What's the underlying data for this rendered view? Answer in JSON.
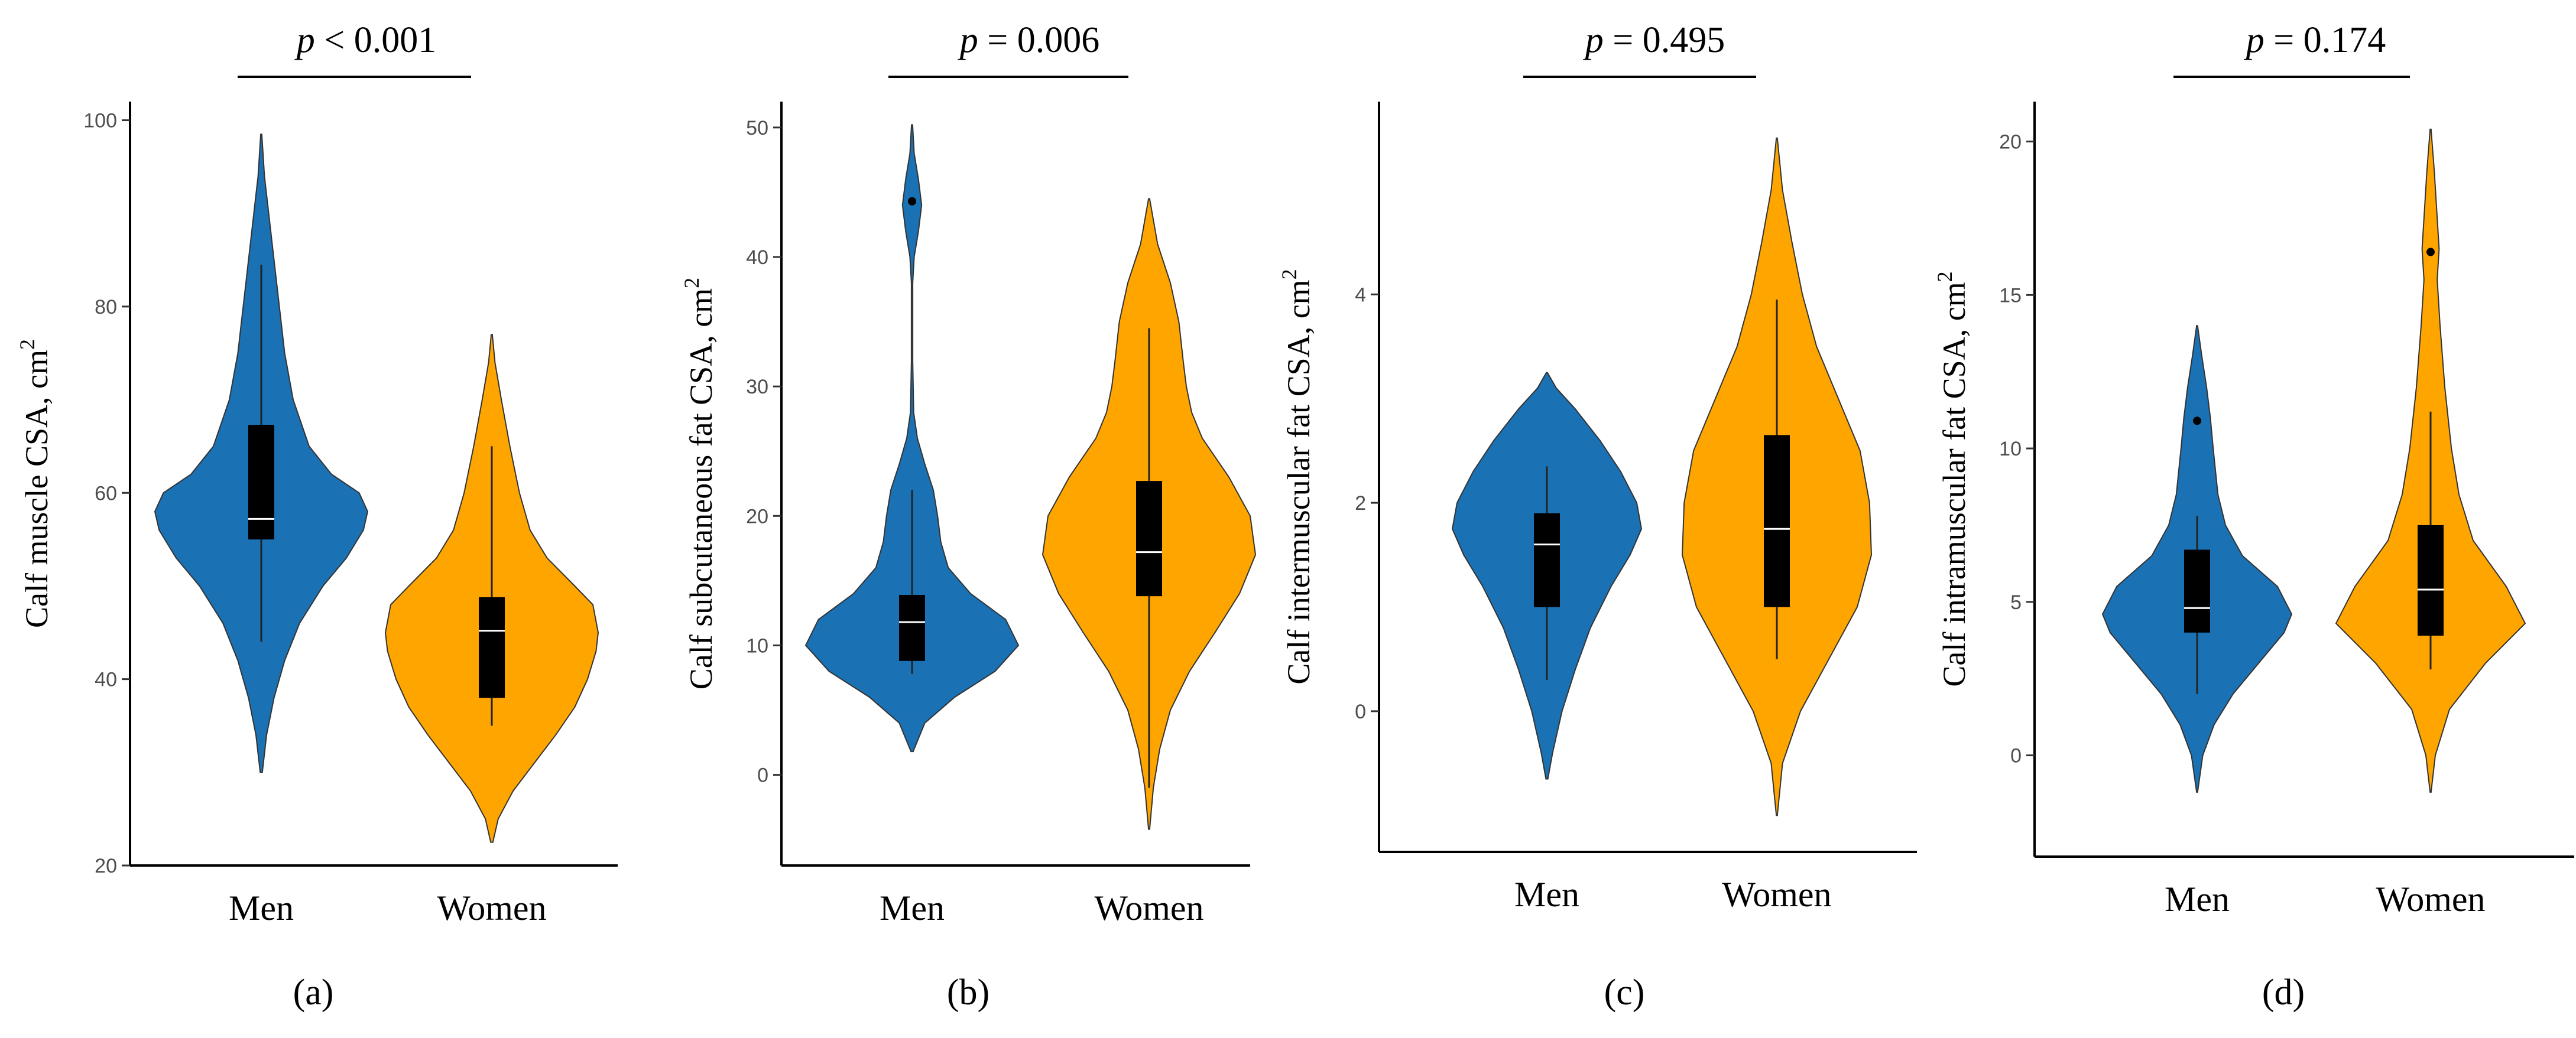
{
  "chart_data": [
    {
      "type": "violin",
      "panel_label": "(a)",
      "p_label": "p",
      "p_text": " < 0.001",
      "ylabel": "Calf muscle CSA, cm",
      "ylabel_sup": "2",
      "categories": [
        "Men",
        "Women"
      ],
      "colors": [
        "#1a71b4",
        "#ffa500"
      ],
      "ylim": [
        20,
        102
      ],
      "yticks": [
        20,
        40,
        60,
        80,
        100
      ],
      "tick_labels": [
        "20",
        "40",
        "60",
        "80",
        "100"
      ],
      "series": [
        {
          "name": "Men",
          "violin_min": 30,
          "violin_max": 98.5,
          "density": [
            [
              30,
              0.01
            ],
            [
              34,
              0.05
            ],
            [
              38,
              0.12
            ],
            [
              42,
              0.22
            ],
            [
              46,
              0.36
            ],
            [
              50,
              0.58
            ],
            [
              53,
              0.8
            ],
            [
              56,
              0.96
            ],
            [
              58,
              1
            ],
            [
              60,
              0.92
            ],
            [
              62,
              0.66
            ],
            [
              65,
              0.45
            ],
            [
              70,
              0.3
            ],
            [
              75,
              0.22
            ],
            [
              80,
              0.17
            ],
            [
              85,
              0.12
            ],
            [
              90,
              0.07
            ],
            [
              94,
              0.03
            ],
            [
              98.5,
              0.005
            ]
          ],
          "box": {
            "q1": 55,
            "median": 57.2,
            "q3": 67.3,
            "whisker_low": 44,
            "whisker_high": 84.5
          },
          "outliers": []
        },
        {
          "name": "Women",
          "violin_min": 22.5,
          "violin_max": 77,
          "density": [
            [
              22.5,
              0.01
            ],
            [
              25,
              0.06
            ],
            [
              28,
              0.2
            ],
            [
              31,
              0.4
            ],
            [
              34,
              0.6
            ],
            [
              37,
              0.78
            ],
            [
              40,
              0.9
            ],
            [
              43,
              0.98
            ],
            [
              45,
              1
            ],
            [
              48,
              0.95
            ],
            [
              50,
              0.78
            ],
            [
              53,
              0.52
            ],
            [
              56,
              0.36
            ],
            [
              60,
              0.26
            ],
            [
              65,
              0.17
            ],
            [
              70,
              0.09
            ],
            [
              74,
              0.03
            ],
            [
              77,
              0.005
            ]
          ],
          "box": {
            "q1": 38,
            "median": 45.2,
            "q3": 48.8,
            "whisker_low": 35,
            "whisker_high": 65
          },
          "outliers": []
        }
      ]
    },
    {
      "type": "violin",
      "panel_label": "(b)",
      "p_label": "p",
      "p_text": " = 0.006",
      "ylabel": "Calf subcutaneous fat  CSA, cm",
      "ylabel_sup": "2",
      "categories": [
        "Men",
        "Women"
      ],
      "colors": [
        "#1a71b4",
        "#ffa500"
      ],
      "ylim": [
        -7,
        52
      ],
      "yticks": [
        0,
        10,
        20,
        30,
        40,
        50
      ],
      "tick_labels": [
        "0",
        "10",
        "20",
        "30",
        "40",
        "50"
      ],
      "series": [
        {
          "name": "Men",
          "violin_min": 1.8,
          "violin_max": 50.2,
          "density": [
            [
              1.8,
              0.01
            ],
            [
              4,
              0.12
            ],
            [
              6,
              0.4
            ],
            [
              8,
              0.78
            ],
            [
              10,
              1
            ],
            [
              12,
              0.88
            ],
            [
              14,
              0.55
            ],
            [
              16,
              0.34
            ],
            [
              18,
              0.27
            ],
            [
              20,
              0.24
            ],
            [
              22,
              0.2
            ],
            [
              24,
              0.12
            ],
            [
              26,
              0.05
            ],
            [
              28,
              0.015
            ],
            [
              32,
              0.006
            ],
            [
              38,
              0.006
            ],
            [
              40,
              0.02
            ],
            [
              42,
              0.06
            ],
            [
              44,
              0.09
            ],
            [
              46,
              0.06
            ],
            [
              48,
              0.02
            ],
            [
              50.2,
              0.005
            ]
          ],
          "box": {
            "q1": 8.8,
            "median": 11.8,
            "q3": 13.9,
            "whisker_low": 7.8,
            "whisker_high": 22
          },
          "outliers": [
            44.3
          ]
        },
        {
          "name": "Women",
          "violin_min": -4.2,
          "violin_max": 44.5,
          "density": [
            [
              -4.2,
              0.005
            ],
            [
              -1,
              0.04
            ],
            [
              2,
              0.1
            ],
            [
              5,
              0.2
            ],
            [
              8,
              0.38
            ],
            [
              11,
              0.62
            ],
            [
              14,
              0.85
            ],
            [
              17,
              1
            ],
            [
              20,
              0.95
            ],
            [
              23,
              0.75
            ],
            [
              26,
              0.5
            ],
            [
              28,
              0.4
            ],
            [
              30,
              0.35
            ],
            [
              32,
              0.32
            ],
            [
              35,
              0.28
            ],
            [
              38,
              0.2
            ],
            [
              41,
              0.08
            ],
            [
              44.5,
              0.005
            ]
          ],
          "box": {
            "q1": 13.8,
            "median": 17.2,
            "q3": 22.7,
            "whisker_low": -1,
            "whisker_high": 34.5
          },
          "outliers": []
        }
      ]
    },
    {
      "type": "violin",
      "panel_label": "(c)",
      "p_label": "p",
      "p_text": " = 0.495",
      "ylabel": "Calf intermuscular  fat  CSA, cm",
      "ylabel_sup": "2",
      "categories": [
        "Men",
        "Women"
      ],
      "colors": [
        "#1a71b4",
        "#ffa500"
      ],
      "ylim": [
        -1.35,
        5.85
      ],
      "yticks": [
        0,
        2,
        4
      ],
      "tick_labels": [
        "0",
        "2",
        "4"
      ],
      "series": [
        {
          "name": "Men",
          "violin_min": -0.65,
          "violin_max": 3.25,
          "density": [
            [
              -0.65,
              0.01
            ],
            [
              -0.4,
              0.06
            ],
            [
              0,
              0.16
            ],
            [
              0.4,
              0.3
            ],
            [
              0.8,
              0.46
            ],
            [
              1.2,
              0.68
            ],
            [
              1.5,
              0.88
            ],
            [
              1.75,
              1
            ],
            [
              2,
              0.95
            ],
            [
              2.3,
              0.78
            ],
            [
              2.6,
              0.56
            ],
            [
              2.9,
              0.3
            ],
            [
              3.1,
              0.1
            ],
            [
              3.25,
              0.005
            ]
          ],
          "box": {
            "q1": 1,
            "median": 1.6,
            "q3": 1.9,
            "whisker_low": 0.3,
            "whisker_high": 2.35
          },
          "outliers": []
        },
        {
          "name": "Women",
          "violin_min": -1.0,
          "violin_max": 5.5,
          "density": [
            [
              -1,
              0.005
            ],
            [
              -0.5,
              0.06
            ],
            [
              0,
              0.25
            ],
            [
              0.5,
              0.55
            ],
            [
              1,
              0.85
            ],
            [
              1.5,
              1
            ],
            [
              2,
              0.98
            ],
            [
              2.5,
              0.88
            ],
            [
              3,
              0.65
            ],
            [
              3.5,
              0.42
            ],
            [
              4,
              0.27
            ],
            [
              4.5,
              0.16
            ],
            [
              5,
              0.06
            ],
            [
              5.5,
              0.005
            ]
          ],
          "box": {
            "q1": 1,
            "median": 1.75,
            "q3": 2.65,
            "whisker_low": 0.5,
            "whisker_high": 3.95
          },
          "outliers": []
        }
      ]
    },
    {
      "type": "violin",
      "panel_label": "(d)",
      "p_label": "p",
      "p_text": " = 0.174",
      "ylabel": "Calf intramuscular  fat  CSA, cm",
      "ylabel_sup": "2",
      "categories": [
        "Men",
        "Women"
      ],
      "colors": [
        "#1a71b4",
        "#ffa500"
      ],
      "ylim": [
        -3.3,
        21.3
      ],
      "yticks": [
        0,
        5,
        10,
        15,
        20
      ],
      "tick_labels": [
        "0",
        "5",
        "10",
        "15",
        "20"
      ],
      "series": [
        {
          "name": "Men",
          "violin_min": -1.2,
          "violin_max": 14,
          "density": [
            [
              -1.2,
              0.005
            ],
            [
              0,
              0.06
            ],
            [
              1,
              0.18
            ],
            [
              2,
              0.38
            ],
            [
              3,
              0.65
            ],
            [
              4,
              0.92
            ],
            [
              4.6,
              1
            ],
            [
              5.5,
              0.85
            ],
            [
              6.5,
              0.48
            ],
            [
              7.5,
              0.3
            ],
            [
              8.5,
              0.22
            ],
            [
              10,
              0.17
            ],
            [
              11,
              0.14
            ],
            [
              12,
              0.1
            ],
            [
              13,
              0.05
            ],
            [
              14,
              0.005
            ]
          ],
          "box": {
            "q1": 4,
            "median": 4.8,
            "q3": 6.7,
            "whisker_low": 2,
            "whisker_high": 7.8
          },
          "outliers": [
            10.9
          ]
        },
        {
          "name": "Women",
          "violin_min": -1.2,
          "violin_max": 20.4,
          "density": [
            [
              -1.2,
              0.005
            ],
            [
              0,
              0.05
            ],
            [
              1.5,
              0.2
            ],
            [
              3,
              0.58
            ],
            [
              4.3,
              1
            ],
            [
              5.5,
              0.8
            ],
            [
              7,
              0.45
            ],
            [
              8.5,
              0.3
            ],
            [
              10,
              0.22
            ],
            [
              12,
              0.15
            ],
            [
              14,
              0.1
            ],
            [
              15.5,
              0.07
            ],
            [
              16.5,
              0.09
            ],
            [
              17.5,
              0.07
            ],
            [
              19,
              0.04
            ],
            [
              20.4,
              0.005
            ]
          ],
          "box": {
            "q1": 3.9,
            "median": 5.4,
            "q3": 7.5,
            "whisker_low": 2.8,
            "whisker_high": 11.2
          },
          "outliers": [
            16.4
          ]
        }
      ]
    }
  ]
}
